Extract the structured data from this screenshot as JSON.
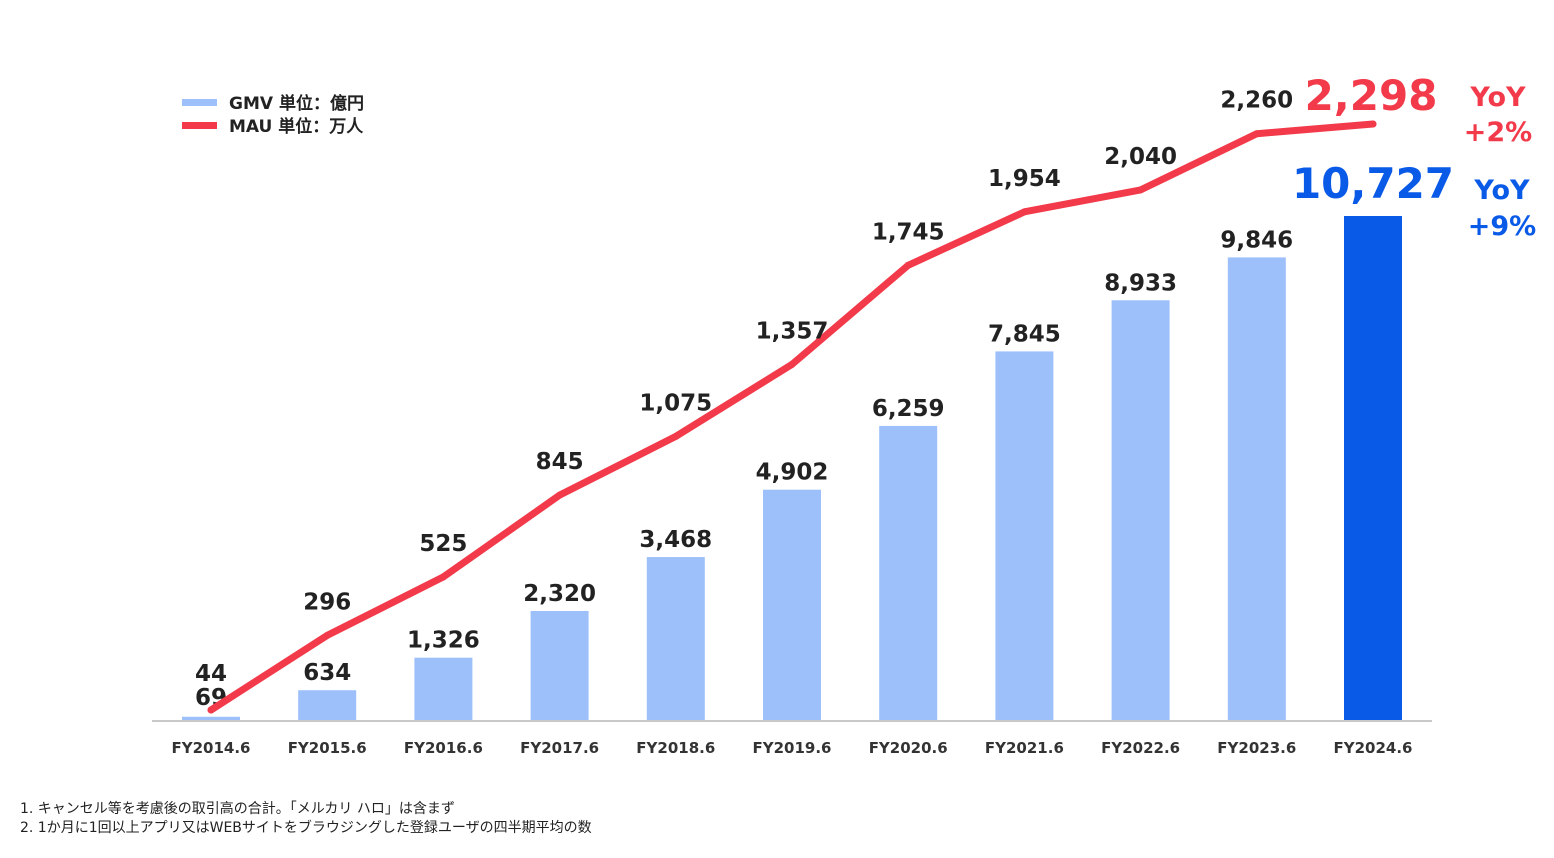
{
  "chart_data": {
    "type": "bar",
    "categories": [
      "FY2014.6",
      "FY2015.6",
      "FY2016.6",
      "FY2017.6",
      "FY2018.6",
      "FY2019.6",
      "FY2020.6",
      "FY2021.6",
      "FY2022.6",
      "FY2023.6",
      "FY2024.6"
    ],
    "series": [
      {
        "name": "GMV 単位：億円",
        "type": "bar",
        "values": [
          69,
          634,
          1326,
          2320,
          3468,
          4902,
          6259,
          7845,
          8933,
          9846,
          10727
        ],
        "labels": [
          "69",
          "634",
          "1,326",
          "2,320",
          "3,468",
          "4,902",
          "6,259",
          "7,845",
          "8,933",
          "9,846",
          "10,727"
        ],
        "color": "#9dc0fa",
        "highlight_color": "#0a5ae8"
      },
      {
        "name": "MAU 単位：万人",
        "type": "line",
        "values": [
          44,
          296,
          525,
          845,
          1075,
          1357,
          1745,
          1954,
          2040,
          2260,
          2298
        ],
        "labels": [
          "44",
          "296",
          "525",
          "845",
          "1,075",
          "1,357",
          "1,745",
          "1,954",
          "2,040",
          "2,260",
          "2,298"
        ],
        "color": "#f23a4a"
      }
    ],
    "gmv_ylim": [
      0,
      11000
    ],
    "mau_ylim": [
      0,
      2500
    ],
    "legend_position": "top-left",
    "grid": false,
    "annotations": {
      "mau_yoy": {
        "line1": "YoY",
        "line2": "+2%",
        "color": "#f23a4a"
      },
      "gmv_yoy": {
        "line1": "YoY",
        "line2": "+9%",
        "color": "#0a5ae8"
      }
    }
  },
  "footnotes": [
    "1. キャンセル等を考慮後の取引高の合計。「メルカリ ハロ」は含まず",
    "2. 1か月に1回以上アプリ又はWEBサイトをブラウジングした登録ユーザの四半期平均の数"
  ]
}
